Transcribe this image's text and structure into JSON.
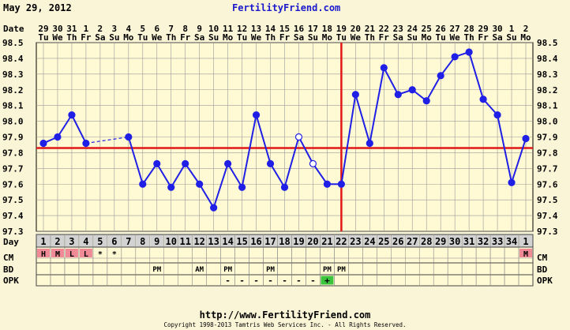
{
  "header": {
    "date": "May 29, 2012",
    "site": "FertilityFriend.com"
  },
  "footer": {
    "url": "http://www.FertilityFriend.com",
    "copyright": "Copyright 1998-2013 Tamtris Web Services Inc. - All Rights Reserved."
  },
  "row_labels": {
    "date": "Date",
    "day": "Day",
    "cm": "CM",
    "bd": "BD",
    "opk": "OPK"
  },
  "colors": {
    "background": "#fbf5d8",
    "plot": "#fff9d4",
    "line": "#1f1fe6",
    "coverline": "#e01818",
    "ovulation": "#e01818",
    "cm_fill": "#f08a96",
    "opk_positive": "#3cc43c",
    "link": "#1a1acc"
  },
  "chart_data": {
    "type": "line",
    "title": "",
    "xlabel": "Day",
    "ylabel": "",
    "ylim": [
      97.3,
      98.5
    ],
    "y_ticks": [
      "98.5",
      "98.4",
      "98.3",
      "98.2",
      "98.1",
      "98.0",
      "97.9",
      "97.8",
      "97.7",
      "97.6",
      "97.5",
      "97.4",
      "97.3"
    ],
    "grid": true,
    "coverline": 97.83,
    "ovulation_day": 22,
    "dates": [
      {
        "d": "29",
        "w": "Tu"
      },
      {
        "d": "30",
        "w": "We"
      },
      {
        "d": "31",
        "w": "Th"
      },
      {
        "d": "1",
        "w": "Fr"
      },
      {
        "d": "2",
        "w": "Sa"
      },
      {
        "d": "3",
        "w": "Su"
      },
      {
        "d": "4",
        "w": "Mo"
      },
      {
        "d": "5",
        "w": "Tu"
      },
      {
        "d": "6",
        "w": "We"
      },
      {
        "d": "7",
        "w": "Th"
      },
      {
        "d": "8",
        "w": "Fr"
      },
      {
        "d": "9",
        "w": "Sa"
      },
      {
        "d": "10",
        "w": "Su"
      },
      {
        "d": "11",
        "w": "Mo"
      },
      {
        "d": "12",
        "w": "Tu"
      },
      {
        "d": "13",
        "w": "We"
      },
      {
        "d": "14",
        "w": "Th"
      },
      {
        "d": "15",
        "w": "Fr"
      },
      {
        "d": "16",
        "w": "Sa"
      },
      {
        "d": "17",
        "w": "Su"
      },
      {
        "d": "18",
        "w": "Mo"
      },
      {
        "d": "19",
        "w": "Tu"
      },
      {
        "d": "20",
        "w": "We"
      },
      {
        "d": "21",
        "w": "Th"
      },
      {
        "d": "22",
        "w": "Fr"
      },
      {
        "d": "23",
        "w": "Sa"
      },
      {
        "d": "24",
        "w": "Su"
      },
      {
        "d": "25",
        "w": "Mo"
      },
      {
        "d": "26",
        "w": "Tu"
      },
      {
        "d": "27",
        "w": "We"
      },
      {
        "d": "28",
        "w": "Th"
      },
      {
        "d": "29",
        "w": "Fr"
      },
      {
        "d": "30",
        "w": "Sa"
      },
      {
        "d": "1",
        "w": "Su"
      },
      {
        "d": "2",
        "w": "Mo"
      }
    ],
    "cycle_days": [
      "1",
      "2",
      "3",
      "4",
      "5",
      "6",
      "7",
      "8",
      "9",
      "10",
      "11",
      "12",
      "13",
      "14",
      "15",
      "16",
      "17",
      "18",
      "19",
      "20",
      "21",
      "22",
      "23",
      "24",
      "25",
      "26",
      "27",
      "28",
      "29",
      "30",
      "31",
      "32",
      "33",
      "34",
      "1"
    ],
    "temps": [
      97.86,
      97.9,
      98.04,
      97.86,
      null,
      null,
      97.9,
      97.6,
      97.73,
      97.58,
      97.73,
      97.6,
      97.45,
      97.73,
      97.58,
      98.04,
      97.73,
      97.58,
      97.9,
      97.73,
      97.6,
      97.6,
      98.17,
      97.86,
      98.34,
      98.17,
      98.2,
      98.13,
      98.29,
      98.41,
      98.44,
      98.14,
      98.04,
      97.61,
      97.89
    ],
    "open_markers": [
      18,
      19
    ],
    "dashed_segments": [
      [
        3,
        6
      ]
    ],
    "cm": [
      "H",
      "M",
      "L",
      "L",
      "*",
      "*",
      "",
      "",
      "",
      "",
      "",
      "",
      "",
      "",
      "",
      "",
      "",
      "",
      "",
      "",
      "",
      "",
      "",
      "",
      "",
      "",
      "",
      "",
      "",
      "",
      "",
      "",
      "",
      "",
      "M"
    ],
    "cm_highlight": [
      0,
      1,
      2,
      3,
      34
    ],
    "bd": [
      "",
      "",
      "",
      "",
      "",
      "",
      "",
      "",
      "PM",
      "",
      "",
      "AM",
      "",
      "PM",
      "",
      "",
      "PM",
      "",
      "",
      "",
      "PM",
      "PM",
      "",
      "",
      "",
      "",
      "",
      "",
      "",
      "",
      "",
      "",
      "",
      "",
      ""
    ],
    "opk": [
      "",
      "",
      "",
      "",
      "",
      "",
      "",
      "",
      "",
      "",
      "",
      "",
      "",
      "-",
      "-",
      "-",
      "-",
      "-",
      "-",
      "-",
      "+",
      "",
      "",
      "",
      "",
      "",
      "",
      "",
      "",
      "",
      "",
      "",
      "",
      "",
      ""
    ],
    "opk_positive": [
      20
    ]
  }
}
